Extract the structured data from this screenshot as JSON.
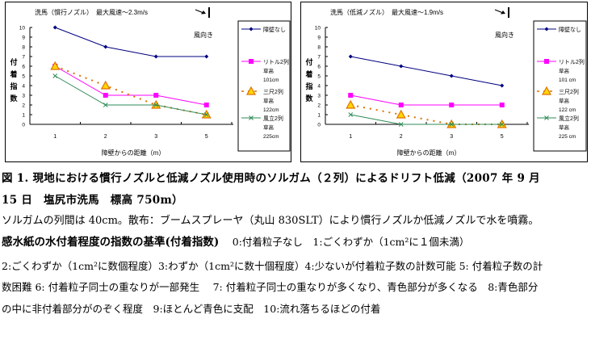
{
  "chart_data": [
    {
      "type": "line",
      "title": "洗馬（慣行ノズル）　最大風速～2.3m/s",
      "wind_label": "風向き",
      "xlabel": "障壁からの距離（m）",
      "ylabel": "付着指数",
      "categories": [
        "1",
        "2",
        "3",
        "5"
      ],
      "ylim": [
        0,
        10
      ],
      "yticks": [
        "0",
        "1",
        "2",
        "3",
        "4",
        "5",
        "6",
        "7",
        "8",
        "9",
        "10"
      ],
      "grid": false,
      "legend_position": "right",
      "series": [
        {
          "name": "障壁なし",
          "sub": [],
          "color": "#000080",
          "marker": "diamond",
          "dash": false,
          "values": [
            10,
            8,
            7,
            7
          ]
        },
        {
          "name": "リトル2列",
          "sub": [
            "草高",
            "101cm"
          ],
          "color": "#FF00FF",
          "marker": "square",
          "dash": false,
          "values": [
            6,
            3,
            3,
            2
          ]
        },
        {
          "name": "三尺2列",
          "sub": [
            "草高",
            "122cm"
          ],
          "color": "#E07000",
          "marker": "triangle",
          "dash": true,
          "values": [
            6,
            4,
            2,
            1
          ]
        },
        {
          "name": "風立2列",
          "sub": [
            "草高",
            "225cm"
          ],
          "color": "#2E8B57",
          "marker": "x",
          "dash": false,
          "values": [
            5,
            2,
            2,
            1
          ]
        }
      ]
    },
    {
      "type": "line",
      "title": "洗馬（低減ノズル）　最大風速～1.9m/s",
      "wind_label": "風向き",
      "xlabel": "障壁からの距離（m）",
      "ylabel": "付着指数",
      "categories": [
        "1",
        "2",
        "3",
        "5"
      ],
      "ylim": [
        0,
        10
      ],
      "yticks": [
        "0",
        "1",
        "2",
        "3",
        "4",
        "5",
        "6",
        "7",
        "8",
        "9",
        "10"
      ],
      "grid": false,
      "legend_position": "right",
      "series": [
        {
          "name": "障壁なし",
          "sub": [],
          "color": "#000080",
          "marker": "diamond",
          "dash": false,
          "values": [
            7,
            6,
            5,
            4
          ]
        },
        {
          "name": "リトル2列",
          "sub": [
            "草高",
            "101 cm"
          ],
          "color": "#FF00FF",
          "marker": "square",
          "dash": false,
          "values": [
            3,
            2,
            2,
            2
          ]
        },
        {
          "name": "三尺2列",
          "sub": [
            "草高",
            "122 cm"
          ],
          "color": "#E07000",
          "marker": "triangle",
          "dash": true,
          "values": [
            2,
            1,
            0,
            0
          ]
        },
        {
          "name": "風立2列",
          "sub": [
            "草高",
            "225 cm"
          ],
          "color": "#2E8B57",
          "marker": "x",
          "dash": false,
          "values": [
            1,
            0,
            0,
            0
          ]
        }
      ]
    }
  ],
  "caption": {
    "line1": "図 1.  現地における慣行ノズルと低減ノズル使用時のソルガム（２列）によるドリフト低減（2007 年 9 月",
    "line2": "15 日　塩尻市洗馬　標高 750m）",
    "line3": "ソルガムの列間は 40cm。散布：ブームスプレーヤ（丸山 830SLT）により慣行ノズルか低減ノズルで水を噴霧。",
    "line4_bold": "感水紙の水付着程度の指数の基準(付着指数)",
    "line4_rest": "　 0:付着粒子なし　1:ごくわずか（1cm²に１個未満）",
    "line5": "2:ごくわずか（1cm²に数個程度）3:わずか（1cm²に数十個程度）4:少ないが付着粒子数の計数可能  5: 付着粒子数の計",
    "line6": "数困難 6: 付着粒子同士の重なりが一部発生　  7: 付着粒子同士の重なりが多くなり、青色部分が多くなる　8:青色部分",
    "line7": "の中に非付着部分がのぞく程度　9:ほとんど青色に支配　10:流れ落ちるほどの付着"
  }
}
